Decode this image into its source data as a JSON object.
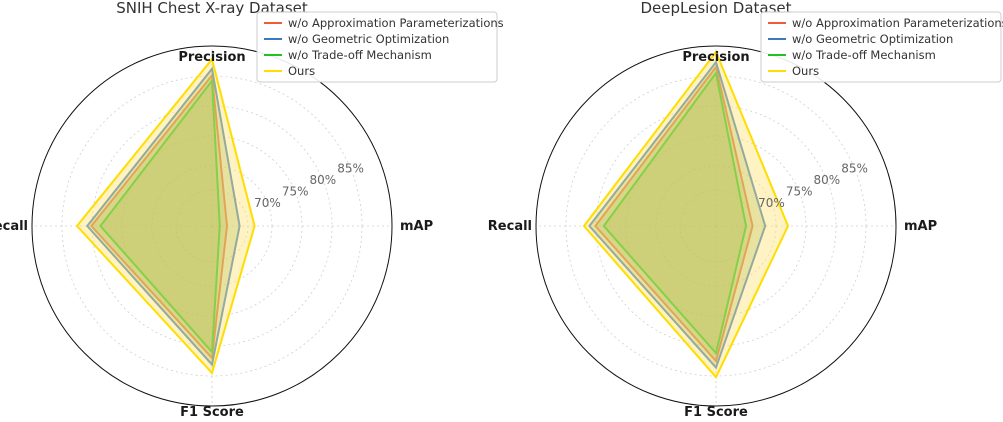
{
  "chart_data": [
    {
      "type": "radar",
      "title": "SNIH Chest X-ray Dataset",
      "axes": [
        "Precision",
        "mAP",
        "F1 Score",
        "Recall"
      ],
      "radial_ticks": [
        "70%",
        "75%",
        "80%",
        "85%"
      ],
      "radial_tick_values": [
        70,
        75,
        80,
        85
      ],
      "rlim": [
        60,
        90
      ],
      "legend_position": "top-right",
      "series": [
        {
          "name": "w/o Approximation Parameterizations",
          "color": "#f05a3c",
          "values": [
            85.1,
            62.5,
            82.0,
            80.1
          ]
        },
        {
          "name": "w/o Geometric Optimization",
          "color": "#3a7abd",
          "values": [
            86.2,
            64.6,
            83.1,
            80.8
          ]
        },
        {
          "name": "w/o Trade-off Mechanism",
          "color": "#22c022",
          "values": [
            84.2,
            61.3,
            81.0,
            78.6
          ]
        },
        {
          "name": "Ours",
          "color": "#ffdd00",
          "values": [
            87.8,
            67.1,
            84.5,
            82.5
          ]
        }
      ]
    },
    {
      "type": "radar",
      "title": "DeepLesion Dataset",
      "axes": [
        "Precision",
        "mAP",
        "F1 Score",
        "Recall"
      ],
      "radial_ticks": [
        "70%",
        "75%",
        "80%",
        "85%"
      ],
      "radial_tick_values": [
        70,
        75,
        80,
        85
      ],
      "rlim": [
        60,
        90
      ],
      "legend_position": "top-right",
      "series": [
        {
          "name": "w/o Approximation Parameterizations",
          "color": "#f05a3c",
          "values": [
            86.5,
            66.1,
            82.5,
            80.1
          ]
        },
        {
          "name": "w/o Geometric Optimization",
          "color": "#3a7abd",
          "values": [
            87.3,
            68.2,
            83.6,
            81.1
          ]
        },
        {
          "name": "w/o Trade-off Mechanism",
          "color": "#22c022",
          "values": [
            85.5,
            65.0,
            81.2,
            78.7
          ]
        },
        {
          "name": "Ours",
          "color": "#ffdd00",
          "values": [
            89.0,
            72.0,
            85.2,
            82.0
          ]
        }
      ]
    }
  ]
}
